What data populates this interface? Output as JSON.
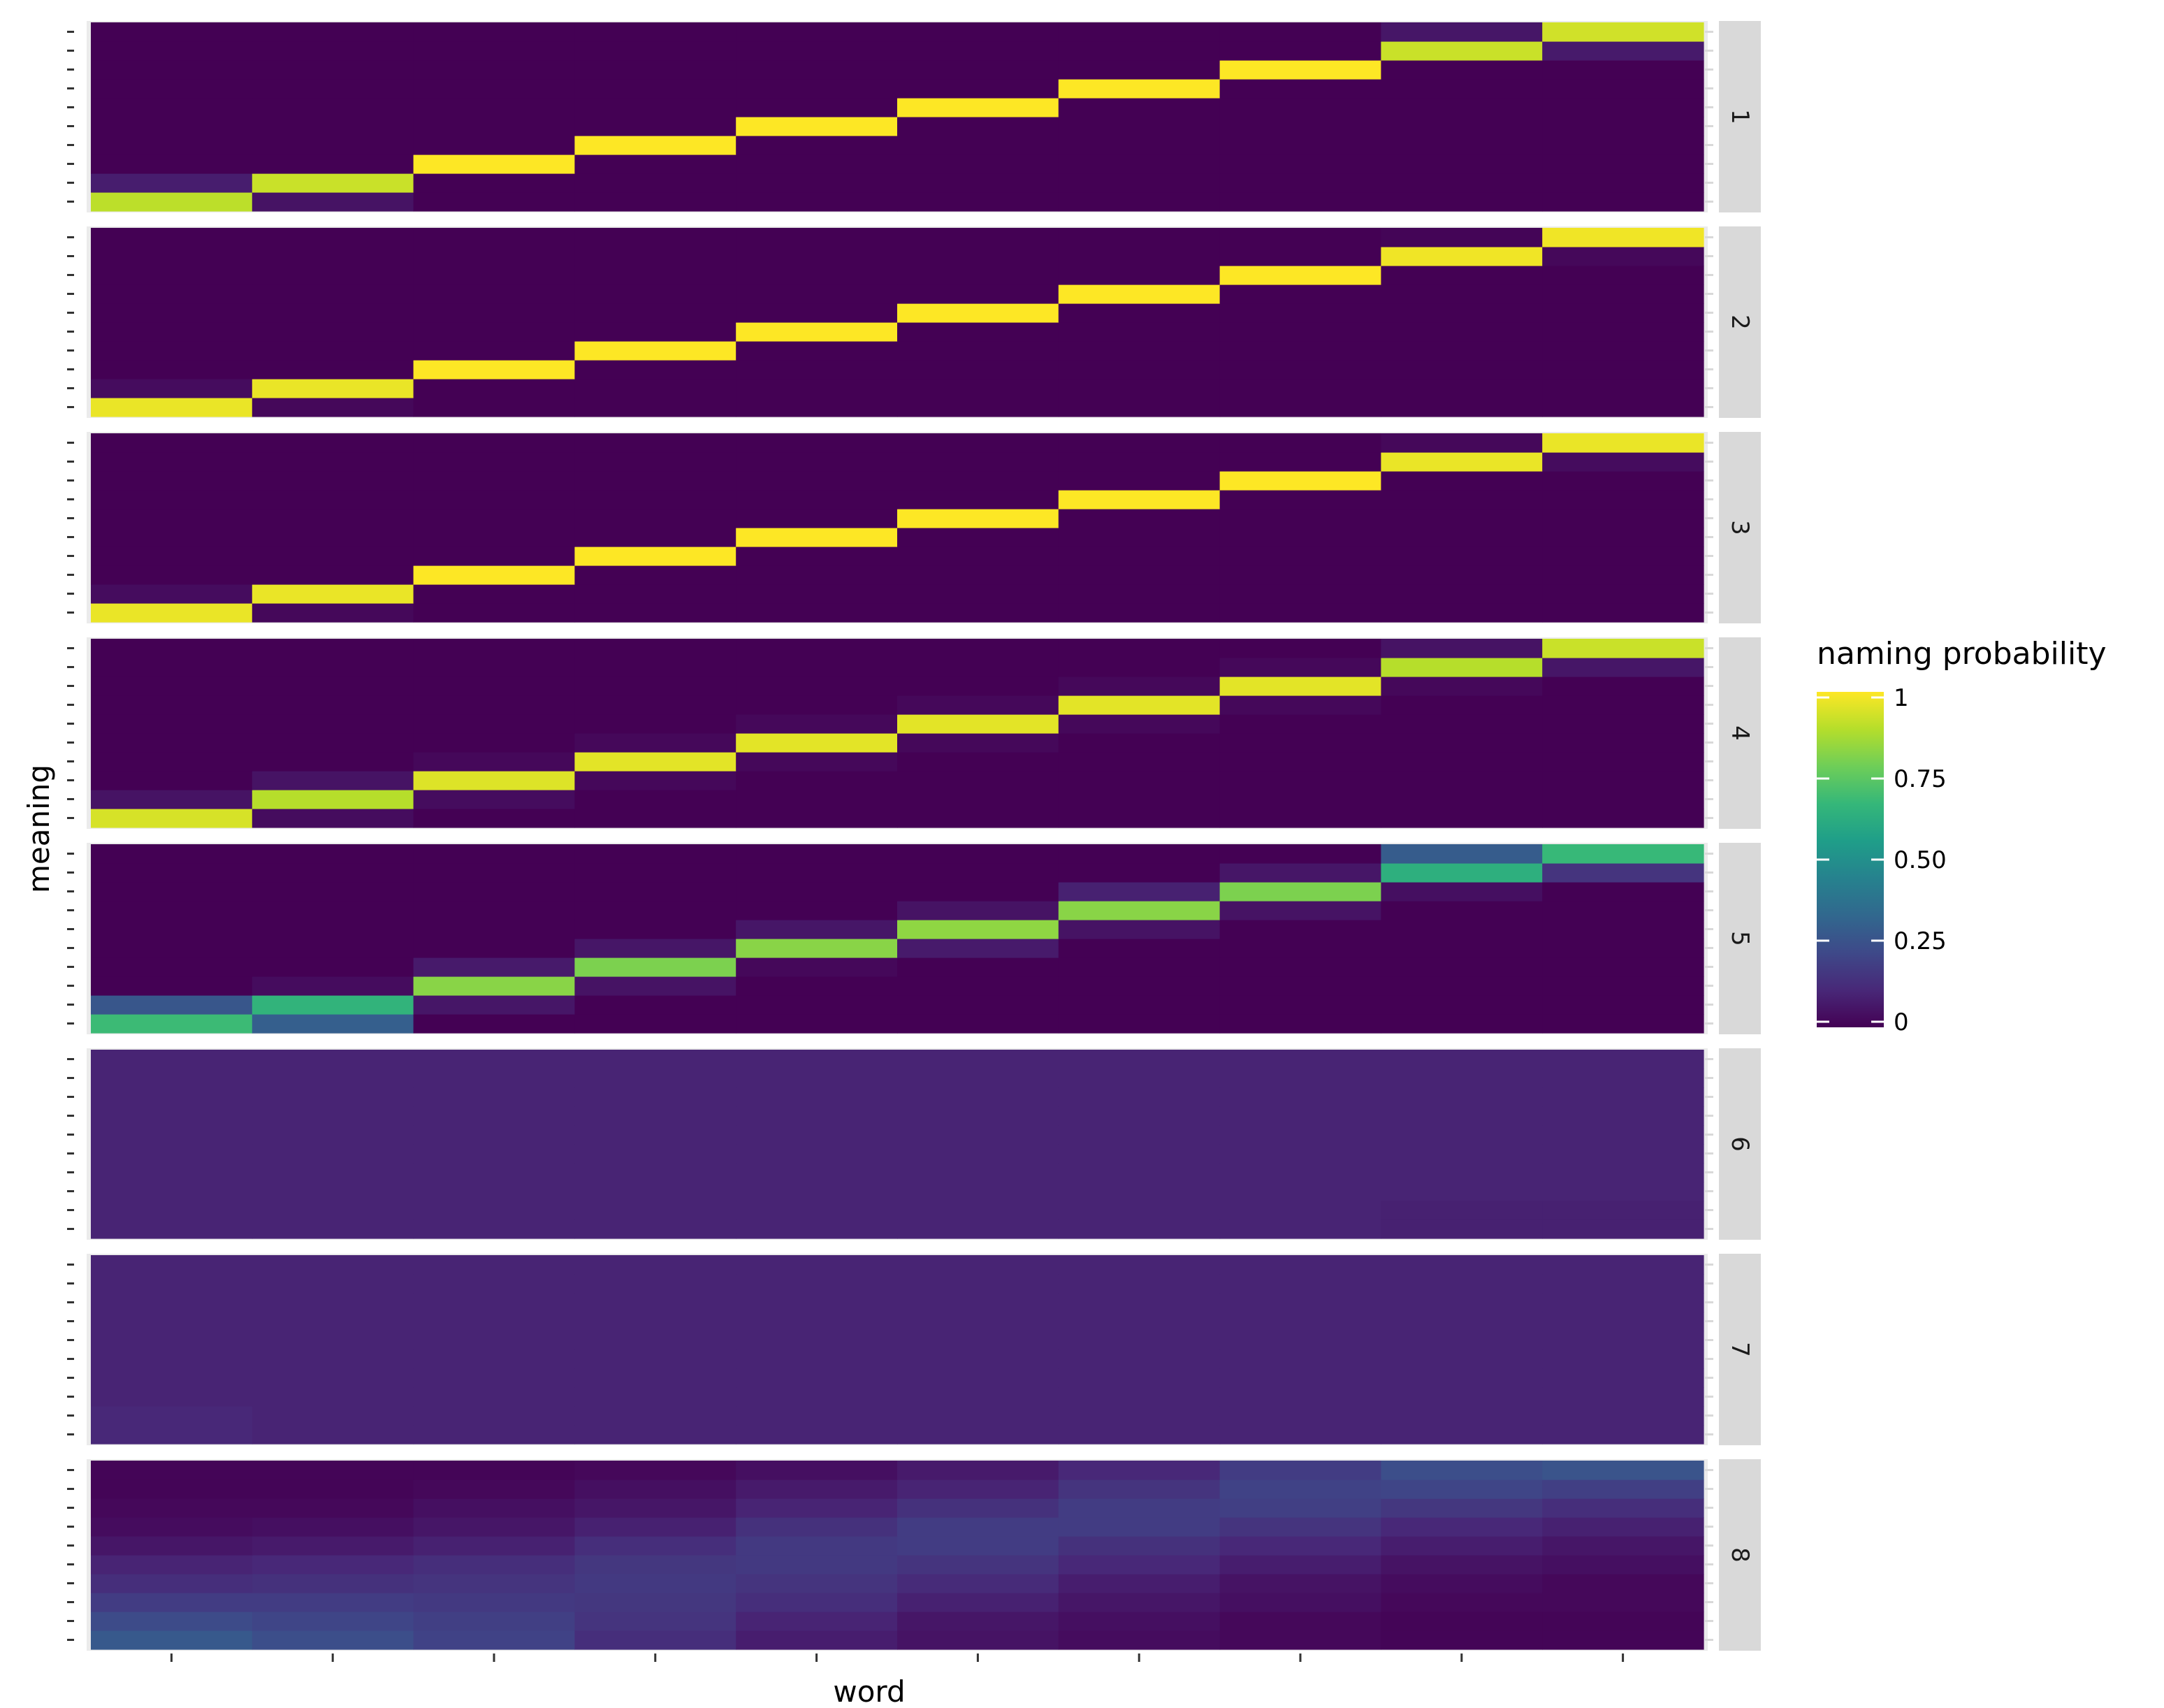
{
  "chart_data": {
    "type": "heatmap",
    "xlabel": "word",
    "ylabel": "meaning",
    "n_words": 10,
    "n_meanings": 10,
    "facets": [
      {
        "label": "1",
        "values": [
          [
            0.9,
            0.05,
            0,
            0,
            0,
            0,
            0,
            0,
            0,
            0
          ],
          [
            0.08,
            0.92,
            0,
            0,
            0,
            0,
            0,
            0,
            0,
            0
          ],
          [
            0,
            0,
            1,
            0,
            0,
            0,
            0,
            0,
            0,
            0
          ],
          [
            0,
            0,
            0,
            1,
            0,
            0,
            0,
            0,
            0,
            0
          ],
          [
            0,
            0,
            0,
            0,
            1,
            0,
            0,
            0,
            0,
            0
          ],
          [
            0,
            0,
            0,
            0,
            0,
            1,
            0,
            0,
            0,
            0
          ],
          [
            0,
            0,
            0,
            0,
            0,
            0,
            1,
            0,
            0,
            0
          ],
          [
            0,
            0,
            0,
            0,
            0,
            0,
            0,
            1,
            0,
            0
          ],
          [
            0,
            0,
            0,
            0,
            0,
            0,
            0,
            0,
            0.92,
            0.07
          ],
          [
            0,
            0,
            0,
            0,
            0,
            0,
            0,
            0,
            0.06,
            0.93
          ]
        ]
      },
      {
        "label": "2",
        "values": [
          [
            0.97,
            0.02,
            0,
            0,
            0,
            0,
            0,
            0,
            0,
            0
          ],
          [
            0.03,
            0.97,
            0,
            0,
            0,
            0,
            0,
            0,
            0,
            0
          ],
          [
            0,
            0,
            1,
            0,
            0,
            0,
            0,
            0,
            0,
            0
          ],
          [
            0,
            0,
            0,
            1,
            0,
            0,
            0,
            0,
            0,
            0
          ],
          [
            0,
            0,
            0,
            0,
            1,
            0,
            0,
            0,
            0,
            0
          ],
          [
            0,
            0,
            0,
            0,
            0,
            1,
            0,
            0,
            0,
            0
          ],
          [
            0,
            0,
            0,
            0,
            0,
            0,
            1,
            0,
            0,
            0
          ],
          [
            0,
            0,
            0,
            0,
            0,
            0,
            0,
            1,
            0,
            0
          ],
          [
            0,
            0,
            0,
            0,
            0,
            0,
            0,
            0,
            0.98,
            0.02
          ],
          [
            0,
            0,
            0,
            0,
            0,
            0,
            0,
            0,
            0.01,
            0.98
          ]
        ]
      },
      {
        "label": "3",
        "values": [
          [
            0.97,
            0.02,
            0,
            0,
            0,
            0,
            0,
            0,
            0,
            0
          ],
          [
            0.03,
            0.97,
            0,
            0,
            0,
            0,
            0,
            0,
            0,
            0
          ],
          [
            0,
            0,
            1,
            0,
            0,
            0,
            0,
            0,
            0,
            0
          ],
          [
            0,
            0,
            0,
            1,
            0,
            0,
            0,
            0,
            0,
            0
          ],
          [
            0,
            0,
            0,
            0,
            1,
            0,
            0,
            0,
            0,
            0
          ],
          [
            0,
            0,
            0,
            0,
            0,
            1,
            0,
            0,
            0,
            0
          ],
          [
            0,
            0,
            0,
            0,
            0,
            0,
            1,
            0,
            0,
            0
          ],
          [
            0,
            0,
            0,
            0,
            0,
            0,
            0,
            1,
            0,
            0
          ],
          [
            0,
            0,
            0,
            0,
            0,
            0,
            0,
            0,
            0.97,
            0.03
          ],
          [
            0,
            0,
            0,
            0,
            0,
            0,
            0,
            0,
            0.02,
            0.97
          ]
        ]
      },
      {
        "label": "4",
        "values": [
          [
            0.94,
            0.03,
            0,
            0,
            0,
            0,
            0,
            0,
            0,
            0
          ],
          [
            0.05,
            0.89,
            0.03,
            0,
            0,
            0,
            0,
            0,
            0,
            0
          ],
          [
            0,
            0.05,
            0.95,
            0.02,
            0,
            0,
            0,
            0,
            0,
            0
          ],
          [
            0,
            0,
            0.02,
            0.96,
            0.02,
            0,
            0,
            0,
            0,
            0
          ],
          [
            0,
            0,
            0,
            0.02,
            0.96,
            0.02,
            0,
            0,
            0,
            0
          ],
          [
            0,
            0,
            0,
            0,
            0.02,
            0.96,
            0.02,
            0,
            0,
            0
          ],
          [
            0,
            0,
            0,
            0,
            0,
            0.02,
            0.96,
            0.02,
            0,
            0
          ],
          [
            0,
            0,
            0,
            0,
            0,
            0,
            0.02,
            0.96,
            0.02,
            0
          ],
          [
            0,
            0,
            0,
            0,
            0,
            0,
            0,
            0.02,
            0.89,
            0.06
          ],
          [
            0,
            0,
            0,
            0,
            0,
            0,
            0,
            0,
            0.05,
            0.92
          ]
        ]
      },
      {
        "label": "5",
        "values": [
          [
            0.68,
            0.3,
            0,
            0,
            0,
            0,
            0,
            0,
            0,
            0
          ],
          [
            0.27,
            0.65,
            0.06,
            0,
            0,
            0,
            0,
            0,
            0,
            0
          ],
          [
            0,
            0.03,
            0.82,
            0.05,
            0,
            0,
            0,
            0,
            0,
            0
          ],
          [
            0,
            0,
            0.07,
            0.8,
            0.02,
            0,
            0,
            0,
            0,
            0
          ],
          [
            0,
            0,
            0,
            0.06,
            0.82,
            0.07,
            0,
            0,
            0,
            0
          ],
          [
            0,
            0,
            0,
            0,
            0.06,
            0.83,
            0.05,
            0,
            0,
            0
          ],
          [
            0,
            0,
            0,
            0,
            0,
            0.05,
            0.82,
            0.05,
            0,
            0
          ],
          [
            0,
            0,
            0,
            0,
            0,
            0,
            0.09,
            0.8,
            0.04,
            0
          ],
          [
            0,
            0,
            0,
            0,
            0,
            0,
            0,
            0.06,
            0.63,
            0.15
          ],
          [
            0,
            0,
            0,
            0,
            0,
            0,
            0,
            0,
            0.29,
            0.67
          ]
        ]
      },
      {
        "label": "6",
        "values": [
          [
            0.1,
            0.1,
            0.1,
            0.1,
            0.1,
            0.1,
            0.1,
            0.1,
            0.09,
            0.09
          ],
          [
            0.1,
            0.1,
            0.1,
            0.1,
            0.1,
            0.1,
            0.1,
            0.1,
            0.09,
            0.09
          ],
          [
            0.1,
            0.1,
            0.1,
            0.1,
            0.1,
            0.1,
            0.1,
            0.1,
            0.1,
            0.1
          ],
          [
            0.1,
            0.1,
            0.1,
            0.1,
            0.1,
            0.1,
            0.1,
            0.1,
            0.1,
            0.1
          ],
          [
            0.1,
            0.1,
            0.1,
            0.1,
            0.1,
            0.1,
            0.1,
            0.1,
            0.1,
            0.1
          ],
          [
            0.1,
            0.1,
            0.1,
            0.1,
            0.1,
            0.1,
            0.1,
            0.1,
            0.1,
            0.1
          ],
          [
            0.1,
            0.1,
            0.1,
            0.1,
            0.1,
            0.1,
            0.1,
            0.1,
            0.1,
            0.1
          ],
          [
            0.1,
            0.1,
            0.1,
            0.1,
            0.1,
            0.1,
            0.1,
            0.1,
            0.1,
            0.1
          ],
          [
            0.1,
            0.1,
            0.1,
            0.1,
            0.1,
            0.1,
            0.1,
            0.1,
            0.1,
            0.1
          ],
          [
            0.1,
            0.1,
            0.1,
            0.1,
            0.1,
            0.1,
            0.1,
            0.1,
            0.1,
            0.1
          ]
        ]
      },
      {
        "label": "7",
        "values": [
          [
            0.11,
            0.1,
            0.1,
            0.1,
            0.1,
            0.1,
            0.1,
            0.1,
            0.1,
            0.1
          ],
          [
            0.11,
            0.1,
            0.1,
            0.1,
            0.1,
            0.1,
            0.1,
            0.1,
            0.1,
            0.1
          ],
          [
            0.1,
            0.1,
            0.1,
            0.1,
            0.1,
            0.1,
            0.1,
            0.1,
            0.1,
            0.1
          ],
          [
            0.1,
            0.1,
            0.1,
            0.1,
            0.1,
            0.1,
            0.1,
            0.1,
            0.1,
            0.1
          ],
          [
            0.1,
            0.1,
            0.1,
            0.1,
            0.1,
            0.1,
            0.1,
            0.1,
            0.1,
            0.1
          ],
          [
            0.1,
            0.1,
            0.1,
            0.1,
            0.1,
            0.1,
            0.1,
            0.1,
            0.1,
            0.1
          ],
          [
            0.1,
            0.1,
            0.1,
            0.1,
            0.1,
            0.1,
            0.1,
            0.1,
            0.1,
            0.1
          ],
          [
            0.1,
            0.1,
            0.1,
            0.1,
            0.1,
            0.1,
            0.1,
            0.1,
            0.1,
            0.1
          ],
          [
            0.1,
            0.1,
            0.1,
            0.1,
            0.1,
            0.1,
            0.1,
            0.1,
            0.1,
            0.1
          ],
          [
            0.1,
            0.1,
            0.1,
            0.1,
            0.1,
            0.1,
            0.1,
            0.1,
            0.1,
            0.1
          ]
        ]
      },
      {
        "label": "8",
        "values": [
          [
            0.28,
            0.24,
            0.2,
            0.13,
            0.08,
            0.05,
            0.03,
            0.02,
            0.01,
            0.01
          ],
          [
            0.23,
            0.21,
            0.19,
            0.15,
            0.1,
            0.06,
            0.04,
            0.02,
            0.01,
            0.01
          ],
          [
            0.18,
            0.18,
            0.17,
            0.16,
            0.13,
            0.09,
            0.06,
            0.04,
            0.02,
            0.02
          ],
          [
            0.13,
            0.14,
            0.15,
            0.17,
            0.15,
            0.12,
            0.08,
            0.05,
            0.03,
            0.02
          ],
          [
            0.1,
            0.11,
            0.13,
            0.16,
            0.17,
            0.15,
            0.11,
            0.08,
            0.05,
            0.04
          ],
          [
            0.06,
            0.07,
            0.09,
            0.13,
            0.17,
            0.18,
            0.14,
            0.11,
            0.08,
            0.06
          ],
          [
            0.03,
            0.04,
            0.06,
            0.09,
            0.14,
            0.18,
            0.18,
            0.15,
            0.11,
            0.09
          ],
          [
            0.02,
            0.02,
            0.04,
            0.06,
            0.1,
            0.14,
            0.18,
            0.19,
            0.16,
            0.13
          ],
          [
            0.01,
            0.01,
            0.02,
            0.04,
            0.07,
            0.1,
            0.15,
            0.2,
            0.21,
            0.19
          ],
          [
            0.01,
            0.01,
            0.01,
            0.02,
            0.04,
            0.07,
            0.11,
            0.18,
            0.24,
            0.26
          ]
        ]
      }
    ],
    "legend": {
      "title": "naming probability",
      "ticks": [
        {
          "value": 1,
          "label": "1"
        },
        {
          "value": 0.75,
          "label": "0.75"
        },
        {
          "value": 0.5,
          "label": "0.50"
        },
        {
          "value": 0.25,
          "label": "0.25"
        },
        {
          "value": 0,
          "label": "0"
        }
      ],
      "colormap": [
        "#440154",
        "#482878",
        "#3e4989",
        "#31688e",
        "#26828e",
        "#1f9e89",
        "#35b779",
        "#6ece58",
        "#b5de2b",
        "#fde725"
      ]
    }
  }
}
